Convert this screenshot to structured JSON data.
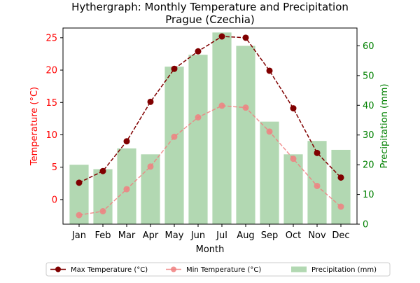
{
  "chart_data": {
    "type": "bar+line",
    "title": "Hythergraph: Monthly Temperature and Precipitation",
    "subtitle": "Prague (Czechia)",
    "xlabel": "Month",
    "ylabel_left": "Temperature (°C)",
    "ylabel_right": "Precipitation (mm)",
    "categories": [
      "Jan",
      "Feb",
      "Mar",
      "Apr",
      "May",
      "Jun",
      "Jul",
      "Aug",
      "Sep",
      "Oct",
      "Nov",
      "Dec"
    ],
    "ylim_left": [
      -3.8,
      26.5
    ],
    "ylim_right": [
      0,
      66
    ],
    "yticks_left": [
      0,
      5,
      10,
      15,
      20,
      25
    ],
    "yticks_right": [
      0,
      10,
      20,
      30,
      40,
      50,
      60
    ],
    "series": [
      {
        "name": "Max Temperature (°C)",
        "kind": "line",
        "axis": "left",
        "color": "#800000",
        "linestyle": "dashed",
        "values": [
          2.6,
          4.4,
          9.0,
          15.1,
          20.2,
          22.9,
          25.2,
          25.0,
          19.9,
          14.1,
          7.2,
          3.4
        ]
      },
      {
        "name": "Min Temperature (°C)",
        "kind": "line",
        "axis": "left",
        "color": "#f08080",
        "linestyle": "dashed",
        "values": [
          -2.4,
          -1.8,
          1.6,
          5.1,
          9.7,
          12.7,
          14.5,
          14.2,
          10.5,
          6.3,
          2.1,
          -1.1
        ]
      },
      {
        "name": "Precipitation (mm)",
        "kind": "bar",
        "axis": "right",
        "color": "#b2d8b2",
        "values": [
          20.0,
          18.5,
          25.5,
          23.5,
          53.0,
          57.0,
          64.5,
          60.0,
          34.5,
          23.5,
          28.0,
          25.0
        ]
      }
    ],
    "legend_placement": "bottom-center",
    "grid": false,
    "colors": {
      "left_axis": "#ff0000",
      "right_axis": "#008000"
    }
  }
}
